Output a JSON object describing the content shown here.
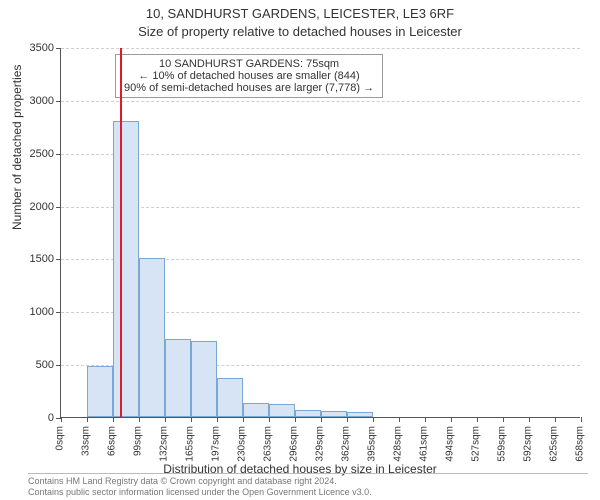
{
  "title_line1": "10, SANDHURST GARDENS, LEICESTER, LE3 6RF",
  "title_line2": "Size of property relative to detached houses in Leicester",
  "ylabel": "Number of detached properties",
  "xlabel": "Distribution of detached houses by size in Leicester",
  "histogram": {
    "type": "histogram",
    "ylim": [
      0,
      3500
    ],
    "ytick_step": 500,
    "yticks": [
      0,
      500,
      1000,
      1500,
      2000,
      2500,
      3000,
      3500
    ],
    "x_tick_labels": [
      "0sqm",
      "33sqm",
      "66sqm",
      "99sqm",
      "132sqm",
      "165sqm",
      "197sqm",
      "230sqm",
      "263sqm",
      "296sqm",
      "329sqm",
      "362sqm",
      "395sqm",
      "428sqm",
      "461sqm",
      "494sqm",
      "527sqm",
      "559sqm",
      "592sqm",
      "625sqm",
      "658sqm"
    ],
    "bar_values": [
      0,
      480,
      2800,
      1500,
      740,
      720,
      370,
      130,
      120,
      70,
      55,
      45,
      0,
      0,
      0,
      0,
      0,
      0,
      0,
      0
    ],
    "bar_fill": "#d6e4f5",
    "bar_stroke": "#7aa7d4",
    "grid_color": "#cfcfcf",
    "background": "#ffffff",
    "reference_line": {
      "x_value": 75,
      "x_axis_max": 660,
      "color": "#d91e2a"
    }
  },
  "annotation": {
    "line1": "10 SANDHURST GARDENS: 75sqm",
    "line2": "← 10% of detached houses are smaller (844)",
    "line3": "90% of semi-detached houses are larger (7,778) →",
    "border": "#9a9a9a",
    "fontsize": 11
  },
  "footer": {
    "line1": "Contains HM Land Registry data © Crown copyright and database right 2024.",
    "line2": "Contains public sector information licensed under the Open Government Licence v3.0."
  }
}
